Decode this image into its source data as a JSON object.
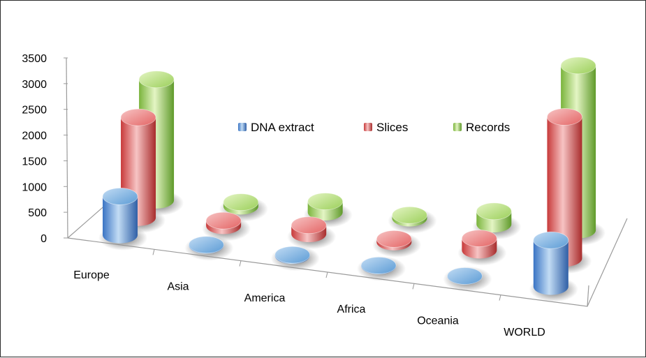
{
  "chart_data": {
    "type": "bar",
    "subtype": "3d-cylinder",
    "title": "",
    "xlabel": "",
    "ylabel": "",
    "ylim": [
      0,
      3500
    ],
    "yticks": [
      0,
      500,
      1000,
      1500,
      2000,
      2500,
      3000,
      3500
    ],
    "categories": [
      "Europe",
      "Asia",
      "America",
      "Africa",
      "Oceania",
      "WORLD"
    ],
    "series": [
      {
        "name": "DNA extract",
        "color": "#5b9bd5",
        "values": [
          750,
          10,
          15,
          10,
          5,
          900
        ]
      },
      {
        "name": "Slices",
        "color": "#e46464",
        "values": [
          1950,
          100,
          170,
          60,
          230,
          2750
        ]
      },
      {
        "name": "Records",
        "color": "#9bcf5a",
        "values": [
          2350,
          80,
          210,
          60,
          250,
          3200
        ]
      }
    ],
    "legend": {
      "position": "center-top"
    },
    "grid": false
  }
}
